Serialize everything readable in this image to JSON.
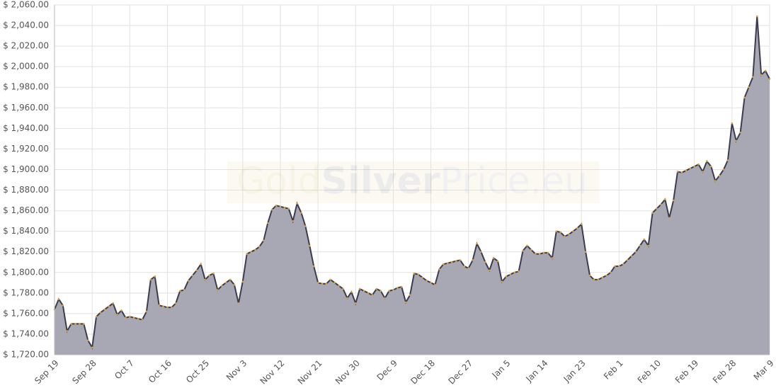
{
  "chart_data": {
    "type": "area",
    "watermark": [
      "Gold",
      "Silver",
      "Price.eu"
    ],
    "color": "#a8a7b4",
    "line_color": "#3d3c4f",
    "point_color": "#e0a030",
    "grid": true,
    "ylim": [
      1720,
      2060
    ],
    "yticks": [
      {
        "value": 1720,
        "label": "$ 1,720.00"
      },
      {
        "value": 1740,
        "label": "$ 1,740.00"
      },
      {
        "value": 1760,
        "label": "$ 1,760.00"
      },
      {
        "value": 1780,
        "label": "$ 1,780.00"
      },
      {
        "value": 1800,
        "label": "$ 1,800.00"
      },
      {
        "value": 1820,
        "label": "$ 1,820.00"
      },
      {
        "value": 1840,
        "label": "$ 1,840.00"
      },
      {
        "value": 1860,
        "label": "$ 1,860.00"
      },
      {
        "value": 1880,
        "label": "$ 1,880.00"
      },
      {
        "value": 1900,
        "label": "$ 1,900.00"
      },
      {
        "value": 1920,
        "label": "$ 1,920.00"
      },
      {
        "value": 1940,
        "label": "$ 1,940.00"
      },
      {
        "value": 1960,
        "label": "$ 1,960.00"
      },
      {
        "value": 1980,
        "label": "$ 1,980.00"
      },
      {
        "value": 2000,
        "label": "$ 2,000.00"
      },
      {
        "value": 2020,
        "label": "$ 2,020.00"
      },
      {
        "value": 2040,
        "label": "$ 2,040.00"
      },
      {
        "value": 2060,
        "label": "$ 2,060.00"
      }
    ],
    "categories": [
      "Sep 19",
      null,
      null,
      null,
      null,
      null,
      null,
      null,
      null,
      "Sep 28",
      null,
      null,
      null,
      null,
      null,
      null,
      null,
      null,
      "Oct 7",
      null,
      null,
      null,
      null,
      null,
      null,
      null,
      null,
      "Oct 16",
      null,
      null,
      null,
      null,
      null,
      null,
      null,
      null,
      "Oct 25",
      null,
      null,
      null,
      null,
      null,
      null,
      null,
      null,
      "Nov 3",
      null,
      null,
      null,
      null,
      null,
      null,
      null,
      null,
      "Nov 12",
      null,
      null,
      null,
      null,
      null,
      null,
      null,
      null,
      "Nov 21",
      null,
      null,
      null,
      null,
      null,
      null,
      null,
      null,
      "Nov 30",
      null,
      null,
      null,
      null,
      null,
      null,
      null,
      null,
      "Dec 9",
      null,
      null,
      null,
      null,
      null,
      null,
      null,
      null,
      "Dec 18",
      null,
      null,
      null,
      null,
      null,
      null,
      null,
      null,
      "Dec 27",
      null,
      null,
      null,
      null,
      null,
      null,
      null,
      null,
      "Jan 5",
      null,
      null,
      null,
      null,
      null,
      null,
      null,
      null,
      "Jan 14",
      null,
      null,
      null,
      null,
      null,
      null,
      null,
      null,
      "Jan 23",
      null,
      null,
      null,
      null,
      null,
      null,
      null,
      null,
      "Feb 1",
      null,
      null,
      null,
      null,
      null,
      null,
      null,
      null,
      "Feb 10",
      null,
      null,
      null,
      null,
      null,
      null,
      null,
      null,
      "Feb 19",
      null,
      null,
      null,
      null,
      null,
      null,
      null,
      null,
      "Feb 28",
      null,
      null,
      null,
      null,
      null,
      null,
      null,
      null,
      "Mar 9"
    ],
    "values": [
      1764,
      1774,
      1768,
      1743,
      1750,
      1750,
      1750,
      1750,
      1734,
      1727,
      1757,
      1761,
      1764,
      1767,
      1770,
      1759,
      1763,
      1756,
      1757,
      1756,
      1755,
      1754,
      1762,
      1793,
      1796,
      1768,
      1767,
      1766,
      1766,
      1770,
      1782,
      1783,
      1792,
      1797,
      1802,
      1808,
      1793,
      1797,
      1799,
      1783,
      1787,
      1790,
      1793,
      1788,
      1770,
      1791,
      1818,
      1820,
      1822,
      1825,
      1831,
      1848,
      1861,
      1865,
      1864,
      1863,
      1862,
      1850,
      1867,
      1858,
      1845,
      1826,
      1806,
      1790,
      1789,
      1789,
      1793,
      1790,
      1787,
      1784,
      1775,
      1781,
      1770,
      1784,
      1782,
      1780,
      1778,
      1784,
      1782,
      1775,
      1782,
      1783,
      1785,
      1786,
      1771,
      1778,
      1799,
      1798,
      1795,
      1792,
      1790,
      1788,
      1803,
      1808,
      1809,
      1810,
      1811,
      1812,
      1806,
      1804,
      1812,
      1828,
      1820,
      1810,
      1802,
      1814,
      1811,
      1791,
      1796,
      1798,
      1800,
      1801,
      1821,
      1826,
      1822,
      1818,
      1818,
      1819,
      1819,
      1814,
      1840,
      1839,
      1835,
      1837,
      1840,
      1843,
      1847,
      1820,
      1797,
      1793,
      1793,
      1795,
      1797,
      1800,
      1806,
      1806,
      1808,
      1812,
      1816,
      1820,
      1826,
      1832,
      1826,
      1858,
      1862,
      1866,
      1871,
      1853,
      1870,
      1898,
      1897,
      1899,
      1901,
      1903,
      1905,
      1898,
      1908,
      1903,
      1889,
      1894,
      1900,
      1909,
      1945,
      1928,
      1936,
      1970,
      1980,
      1990,
      2049,
      1992,
      1996,
      1988
    ]
  }
}
